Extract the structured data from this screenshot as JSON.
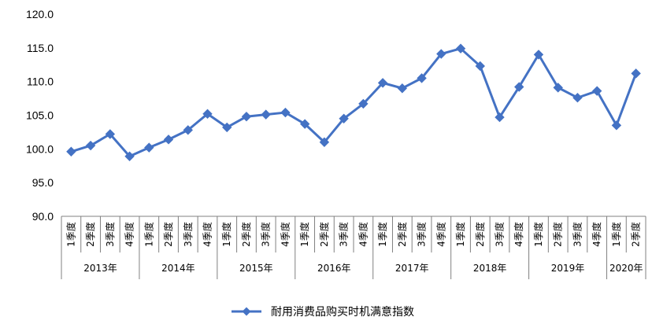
{
  "chart_data": {
    "type": "line",
    "title": "",
    "xlabel": "",
    "ylabel": "",
    "ylim": [
      90,
      120
    ],
    "yticks": [
      "90.0",
      "95.0",
      "100.0",
      "105.0",
      "110.0",
      "115.0",
      "120.0"
    ],
    "grid": false,
    "legend_position": "bottom",
    "quarter_labels": [
      "1季度",
      "2季度",
      "3季度",
      "4季度"
    ],
    "years": [
      {
        "label": "2013年",
        "quarters": 4
      },
      {
        "label": "2014年",
        "quarters": 4
      },
      {
        "label": "2015年",
        "quarters": 4
      },
      {
        "label": "2016年",
        "quarters": 4
      },
      {
        "label": "2017年",
        "quarters": 4
      },
      {
        "label": "2018年",
        "quarters": 4
      },
      {
        "label": "2019年",
        "quarters": 4
      },
      {
        "label": "2020年",
        "quarters": 2
      }
    ],
    "series": [
      {
        "name": "耐用消费品购买时机满意指数",
        "color": "#4472C4",
        "marker": "diamond",
        "values": [
          99.6,
          100.5,
          102.2,
          98.9,
          100.2,
          101.4,
          102.8,
          105.2,
          103.2,
          104.8,
          105.1,
          105.4,
          103.7,
          101.0,
          104.5,
          106.7,
          109.8,
          109.0,
          110.5,
          114.1,
          114.9,
          112.3,
          104.7,
          109.2,
          114.0,
          109.1,
          107.6,
          108.6,
          103.5,
          111.2
        ]
      }
    ]
  }
}
